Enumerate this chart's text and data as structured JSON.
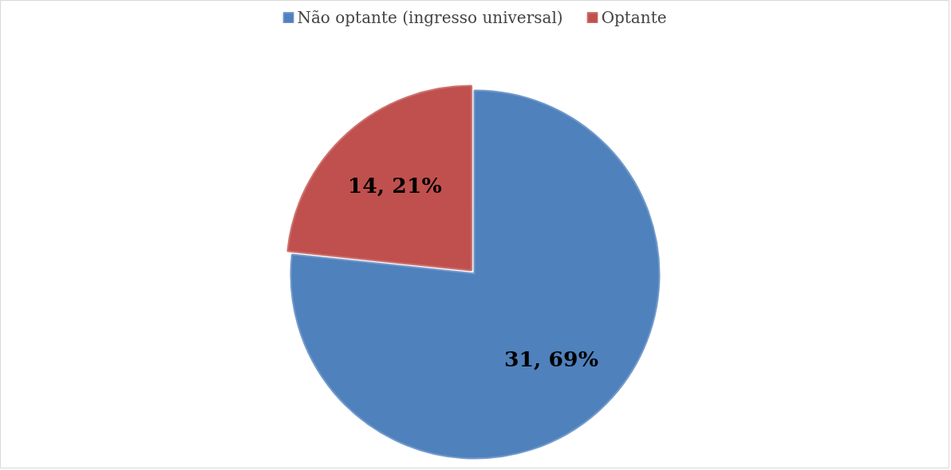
{
  "chart_data": {
    "type": "pie",
    "categories": [
      "Não optante (ingresso universal)",
      "Optante"
    ],
    "values": [
      69,
      21
    ],
    "colors": [
      "#4f81bd",
      "#c0504d"
    ],
    "value_labels": [
      "31, 69%",
      "14, 21%"
    ],
    "legend": "top"
  }
}
